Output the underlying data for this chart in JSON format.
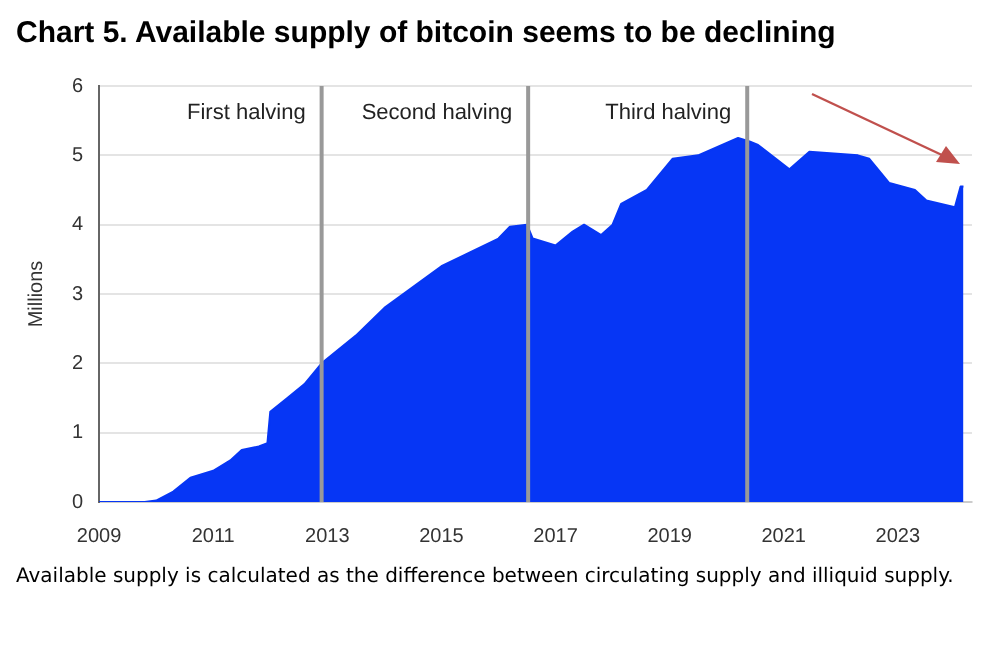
{
  "chart_data": {
    "type": "area",
    "title": "Chart 5. Available supply of bitcoin seems to be declining",
    "ylabel": "Millions",
    "annotations": [
      "Available supply is calculated as the difference between circulating supply and illiquid supply."
    ],
    "x": [
      2009,
      2009.8,
      2010.0,
      2010.3,
      2010.6,
      2011.0,
      2011.3,
      2011.5,
      2011.8,
      2011.95,
      2012.0,
      2012.3,
      2012.6,
      2012.9,
      2013.5,
      2014.0,
      2014.5,
      2015.0,
      2015.5,
      2016.0,
      2016.2,
      2016.5,
      2016.6,
      2017.0,
      2017.3,
      2017.5,
      2017.8,
      2018.0,
      2018.15,
      2018.6,
      2019.05,
      2019.5,
      2020.2,
      2020.4,
      2020.55,
      2021.1,
      2021.45,
      2022.3,
      2022.5,
      2022.85,
      2023.3,
      2023.5,
      2024.0,
      2024.1,
      2024.15
    ],
    "series": [
      {
        "color": "#0636f5",
        "values": [
          0,
          0,
          0.02,
          0.15,
          0.35,
          0.45,
          0.6,
          0.75,
          0.8,
          0.85,
          1.3,
          1.5,
          1.7,
          2.0,
          2.4,
          2.8,
          3.1,
          3.4,
          3.6,
          3.8,
          3.97,
          4.0,
          3.8,
          3.7,
          3.9,
          4.0,
          3.85,
          4.0,
          4.3,
          4.5,
          4.95,
          5.0,
          5.25,
          5.2,
          5.15,
          4.8,
          5.05,
          5.0,
          4.95,
          4.6,
          4.5,
          4.35,
          4.25,
          4.55,
          4.55
        ]
      }
    ],
    "xlim": [
      2009,
      2024.3
    ],
    "xticks": [
      2009,
      2011,
      2013,
      2015,
      2017,
      2019,
      2021,
      2023
    ],
    "ylim": [
      0,
      6
    ],
    "yticks": [
      0,
      1,
      2,
      3,
      4,
      5,
      6
    ],
    "grid": "y",
    "legend": false,
    "ref_lines": [
      {
        "axis": "x",
        "value": 2012.9,
        "label": "First halving",
        "color": "#999999"
      },
      {
        "axis": "x",
        "value": 2016.52,
        "label": "Second halving",
        "color": "#999999"
      },
      {
        "axis": "x",
        "value": 2020.36,
        "label": "Third halving",
        "color": "#999999"
      }
    ]
  }
}
